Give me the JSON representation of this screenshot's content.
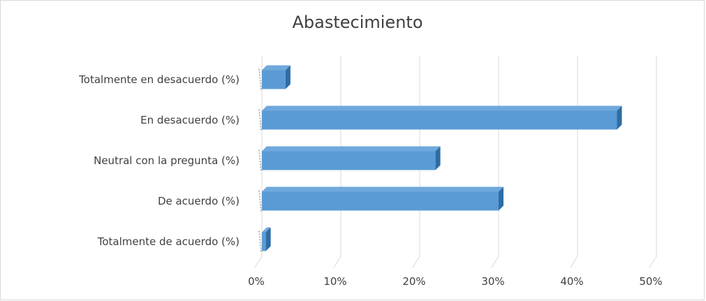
{
  "chart_data": {
    "type": "bar",
    "orientation": "horizontal",
    "title": "Abastecimiento",
    "categories": [
      "Totalmente en desacuerdo (%)",
      "En desacuerdo (%)",
      "Neutral con la pregunta (%)",
      "De acuerdo (%)",
      "Totalmente de acuerdo (%)"
    ],
    "values": [
      3,
      45,
      22,
      30,
      0.5
    ],
    "xlim": [
      0,
      50
    ],
    "xticks": [
      "0%",
      "10%",
      "20%",
      "30%",
      "40%",
      "50%"
    ],
    "grid": true,
    "legend": "none",
    "colors": {
      "bar_front": "#5b9bd5",
      "bar_top": "#6fa8dc",
      "bar_side": "#2e6da4",
      "grid": "#d9d9d9",
      "text": "#404040",
      "frame": "#d9d9d9"
    }
  }
}
